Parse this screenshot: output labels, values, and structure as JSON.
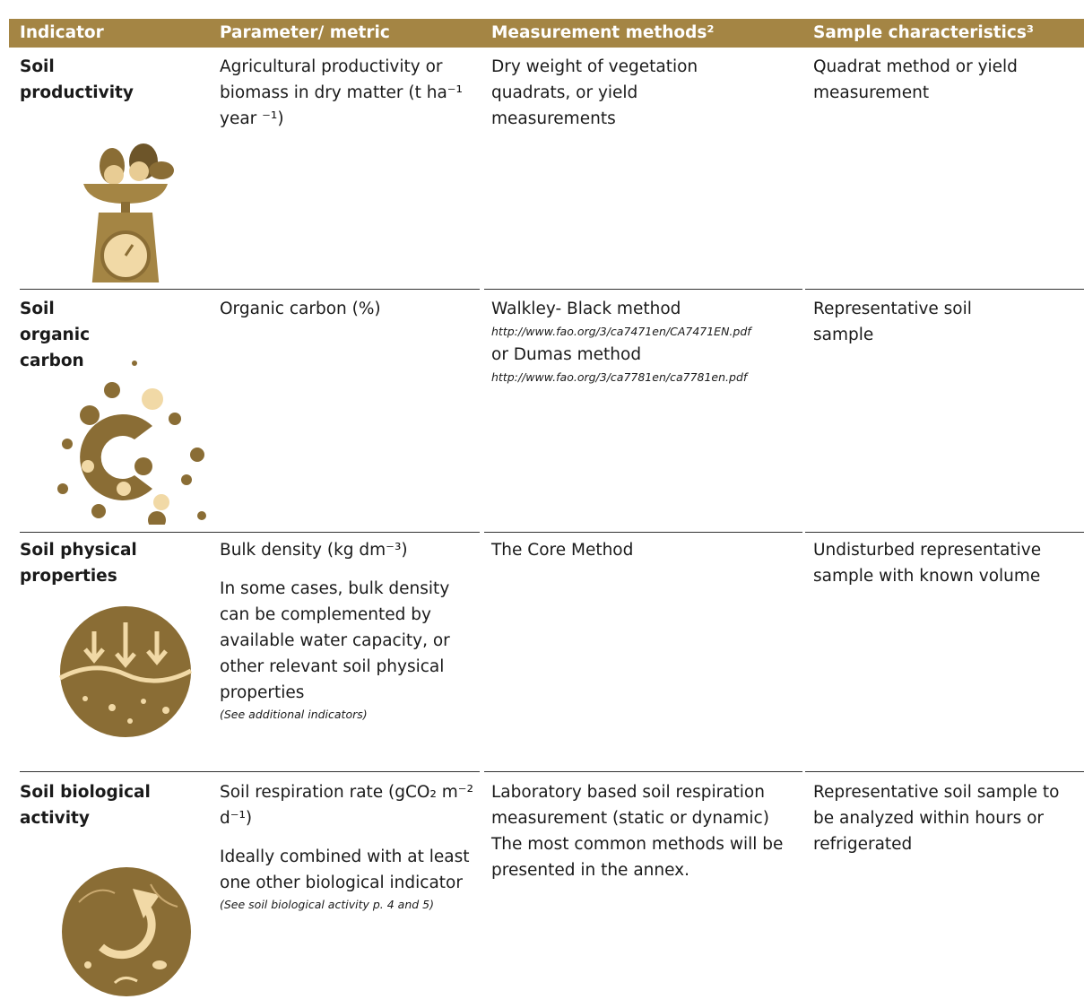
{
  "table": {
    "headers": [
      "Indicator",
      "Parameter/ metric",
      "Measurement methods²",
      "Sample characteristics³"
    ],
    "rows": [
      {
        "indicator": "Soil productivity",
        "parameter": [
          "Agricultural productivity or biomass in dry matter (t ha⁻¹ year ⁻¹)"
        ],
        "methods": [
          {
            "text": "Dry weight of vegetation quadrats, or yield measurements"
          }
        ],
        "sample": "Quadrat method or yield measurement"
      },
      {
        "indicator": "Soil organic carbon",
        "parameter": [
          "Organic carbon (%)"
        ],
        "methods": [
          {
            "text": "Walkley- Black method",
            "link": "http://www.fao.org/3/ca7471en/CA7471EN.pdf"
          },
          {
            "text": "or Dumas method",
            "link": "http://www.fao.org/3/ca7781en/ca7781en.pdf"
          }
        ],
        "sample": "Representative soil sample"
      },
      {
        "indicator": "Soil physical properties",
        "parameter": [
          "Bulk density (kg dm⁻³)",
          "In some cases, bulk density can be complemented by available water capacity, or other relevant soil physical properties"
        ],
        "note": "(See additional indicators)",
        "methods": [
          {
            "text": "The Core Method"
          }
        ],
        "sample": "Undisturbed representative sample with known volume"
      },
      {
        "indicator": "Soil biological activity",
        "parameter": [
          "Soil respiration rate (gCO₂ m⁻² d⁻¹)",
          "Ideally combined with at least one other biological indicator"
        ],
        "note": "(See soil biological activity p. 4 and 5)",
        "methods": [
          {
            "text": "Laboratory based soil respiration measurement (static or dynamic)"
          },
          {
            "text": "The most common methods will be presented in the annex."
          }
        ],
        "sample": "Representative soil sample to be analyzed within hours or refrigerated"
      }
    ]
  }
}
